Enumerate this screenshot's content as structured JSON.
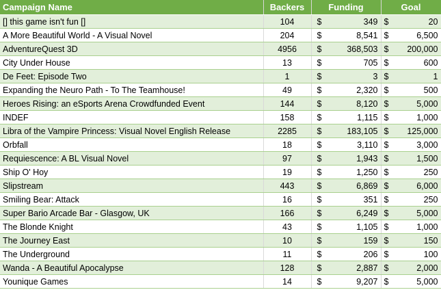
{
  "headers": {
    "name": "Campaign Name",
    "backers": "Backers",
    "funding": "Funding",
    "goal": "Goal"
  },
  "currency": "$",
  "colors": {
    "header": "#70AD47",
    "band": "#E2EFDA",
    "border": "#A9D08E"
  },
  "rows": [
    {
      "name": "[] this game isn't fun []",
      "backers": "104",
      "funding": "349",
      "goal": "20"
    },
    {
      "name": "A More Beautiful World - A Visual Novel",
      "backers": "204",
      "funding": "8,541",
      "goal": "6,500"
    },
    {
      "name": "AdventureQuest 3D",
      "backers": "4956",
      "funding": "368,503",
      "goal": "200,000"
    },
    {
      "name": "City Under House",
      "backers": "13",
      "funding": "705",
      "goal": "600"
    },
    {
      "name": "De Feet: Episode Two",
      "backers": "1",
      "funding": "3",
      "goal": "1"
    },
    {
      "name": "Expanding the Neuro Path - To The Teamhouse!",
      "backers": "49",
      "funding": "2,320",
      "goal": "500"
    },
    {
      "name": "Heroes Rising: an eSports Arena Crowdfunded Event",
      "backers": "144",
      "funding": "8,120",
      "goal": "5,000"
    },
    {
      "name": "INDEF",
      "backers": "158",
      "funding": "1,115",
      "goal": "1,000"
    },
    {
      "name": "Libra of the Vampire Princess: Visual Novel English Release",
      "backers": "2285",
      "funding": "183,105",
      "goal": "125,000"
    },
    {
      "name": "Orbfall",
      "backers": "18",
      "funding": "3,110",
      "goal": "3,000"
    },
    {
      "name": "Requiescence: A BL Visual Novel",
      "backers": "97",
      "funding": "1,943",
      "goal": "1,500"
    },
    {
      "name": "Ship O' Hoy",
      "backers": "19",
      "funding": "1,250",
      "goal": "250"
    },
    {
      "name": "Slipstream",
      "backers": "443",
      "funding": "6,869",
      "goal": "6,000"
    },
    {
      "name": "Smiling Bear: Attack",
      "backers": "16",
      "funding": "351",
      "goal": "250"
    },
    {
      "name": "Super Bario Arcade Bar - Glasgow, UK",
      "backers": "166",
      "funding": "6,249",
      "goal": "5,000"
    },
    {
      "name": "The Blonde Knight",
      "backers": "43",
      "funding": "1,105",
      "goal": "1,000"
    },
    {
      "name": "The Journey East",
      "backers": "10",
      "funding": "159",
      "goal": "150"
    },
    {
      "name": "The Underground",
      "backers": "11",
      "funding": "206",
      "goal": "100"
    },
    {
      "name": "Wanda - A Beautiful Apocalypse",
      "backers": "128",
      "funding": "2,887",
      "goal": "2,000"
    },
    {
      "name": "Younique Games",
      "backers": "14",
      "funding": "9,207",
      "goal": "5,000"
    }
  ]
}
